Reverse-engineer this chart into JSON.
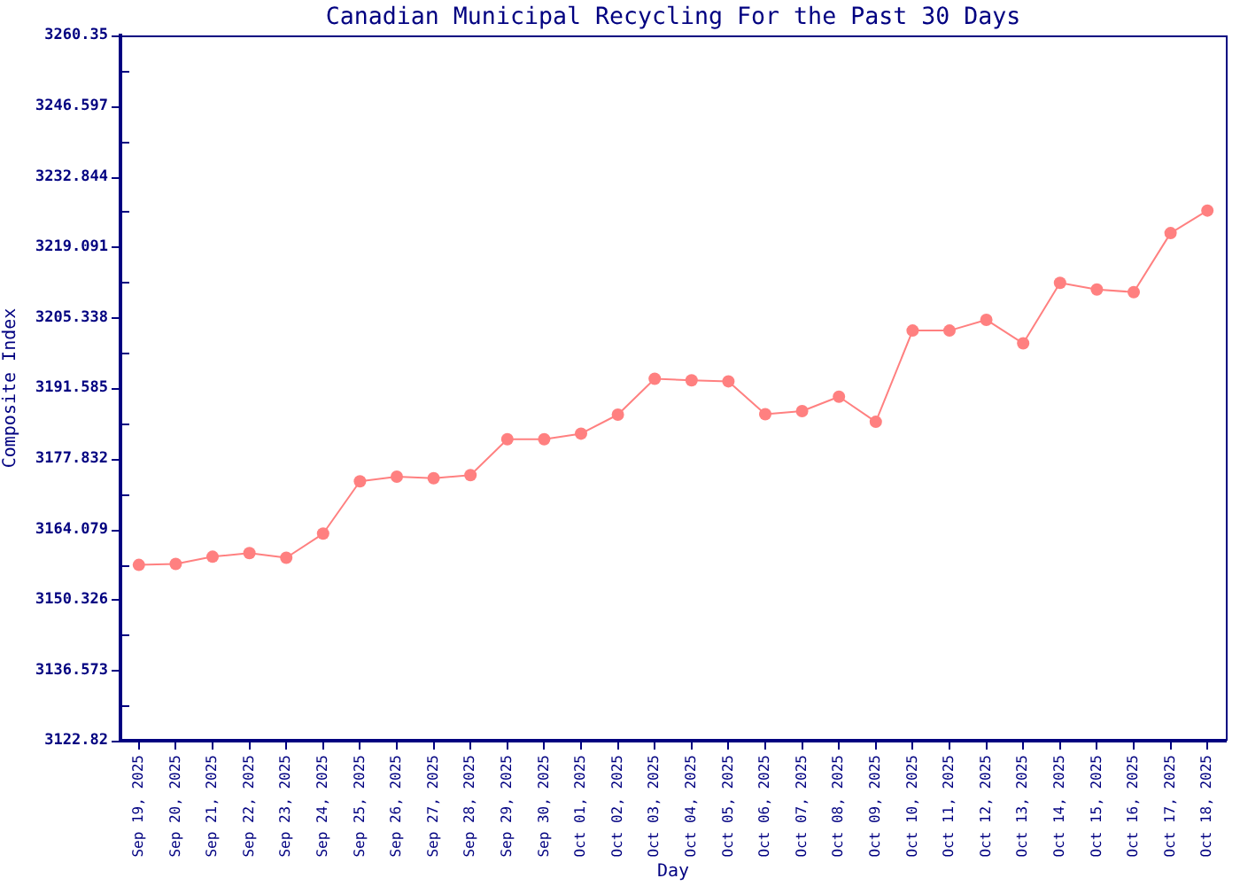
{
  "chart_data": {
    "type": "line",
    "title": "Canadian Municipal Recycling For the Past 30 Days",
    "xlabel": "Day",
    "ylabel": "Composite Index",
    "categories": [
      "Sep 19, 2025",
      "Sep 20, 2025",
      "Sep 21, 2025",
      "Sep 22, 2025",
      "Sep 23, 2025",
      "Sep 24, 2025",
      "Sep 25, 2025",
      "Sep 26, 2025",
      "Sep 27, 2025",
      "Sep 28, 2025",
      "Sep 29, 2025",
      "Sep 30, 2025",
      "Oct 01, 2025",
      "Oct 02, 2025",
      "Oct 03, 2025",
      "Oct 04, 2025",
      "Oct 05, 2025",
      "Oct 06, 2025",
      "Oct 07, 2025",
      "Oct 08, 2025",
      "Oct 09, 2025",
      "Oct 10, 2025",
      "Oct 11, 2025",
      "Oct 12, 2025",
      "Oct 13, 2025",
      "Oct 14, 2025",
      "Oct 15, 2025",
      "Oct 16, 2025",
      "Oct 17, 2025",
      "Oct 18, 2025"
    ],
    "values": [
      3157.1,
      3157.3,
      3158.7,
      3159.4,
      3158.5,
      3163.2,
      3173.4,
      3174.3,
      3174.0,
      3174.6,
      3181.6,
      3181.6,
      3182.7,
      3186.4,
      3193.4,
      3193.1,
      3192.9,
      3186.5,
      3187.1,
      3189.9,
      3185.0,
      3202.8,
      3202.8,
      3204.9,
      3200.3,
      3212.1,
      3210.8,
      3210.3,
      3221.8,
      3226.2
    ],
    "color": "#ff8080",
    "ylim": [
      3122.82,
      3260.35
    ],
    "yticks": [
      3122.82,
      {
        "value": 3129.6965,
        "label": null
      },
      3136.573,
      {
        "value": 3143.4495,
        "label": null
      },
      3150.326,
      {
        "value": 3157.2025,
        "label": null
      },
      3164.079,
      {
        "value": 3170.9555,
        "label": null
      },
      3177.832,
      {
        "value": 3184.7085,
        "label": null
      },
      3191.585,
      {
        "value": 3198.4615,
        "label": null
      },
      3205.338,
      {
        "value": 3212.2145,
        "label": null
      },
      3219.091,
      {
        "value": 3225.9675,
        "label": null
      },
      3232.844,
      {
        "value": 3239.7205,
        "label": null
      },
      3246.597,
      {
        "value": 3253.4735,
        "label": null
      },
      3260.35
    ],
    "grid": false,
    "legend": false,
    "marker": "circle",
    "line_style": "solid"
  }
}
